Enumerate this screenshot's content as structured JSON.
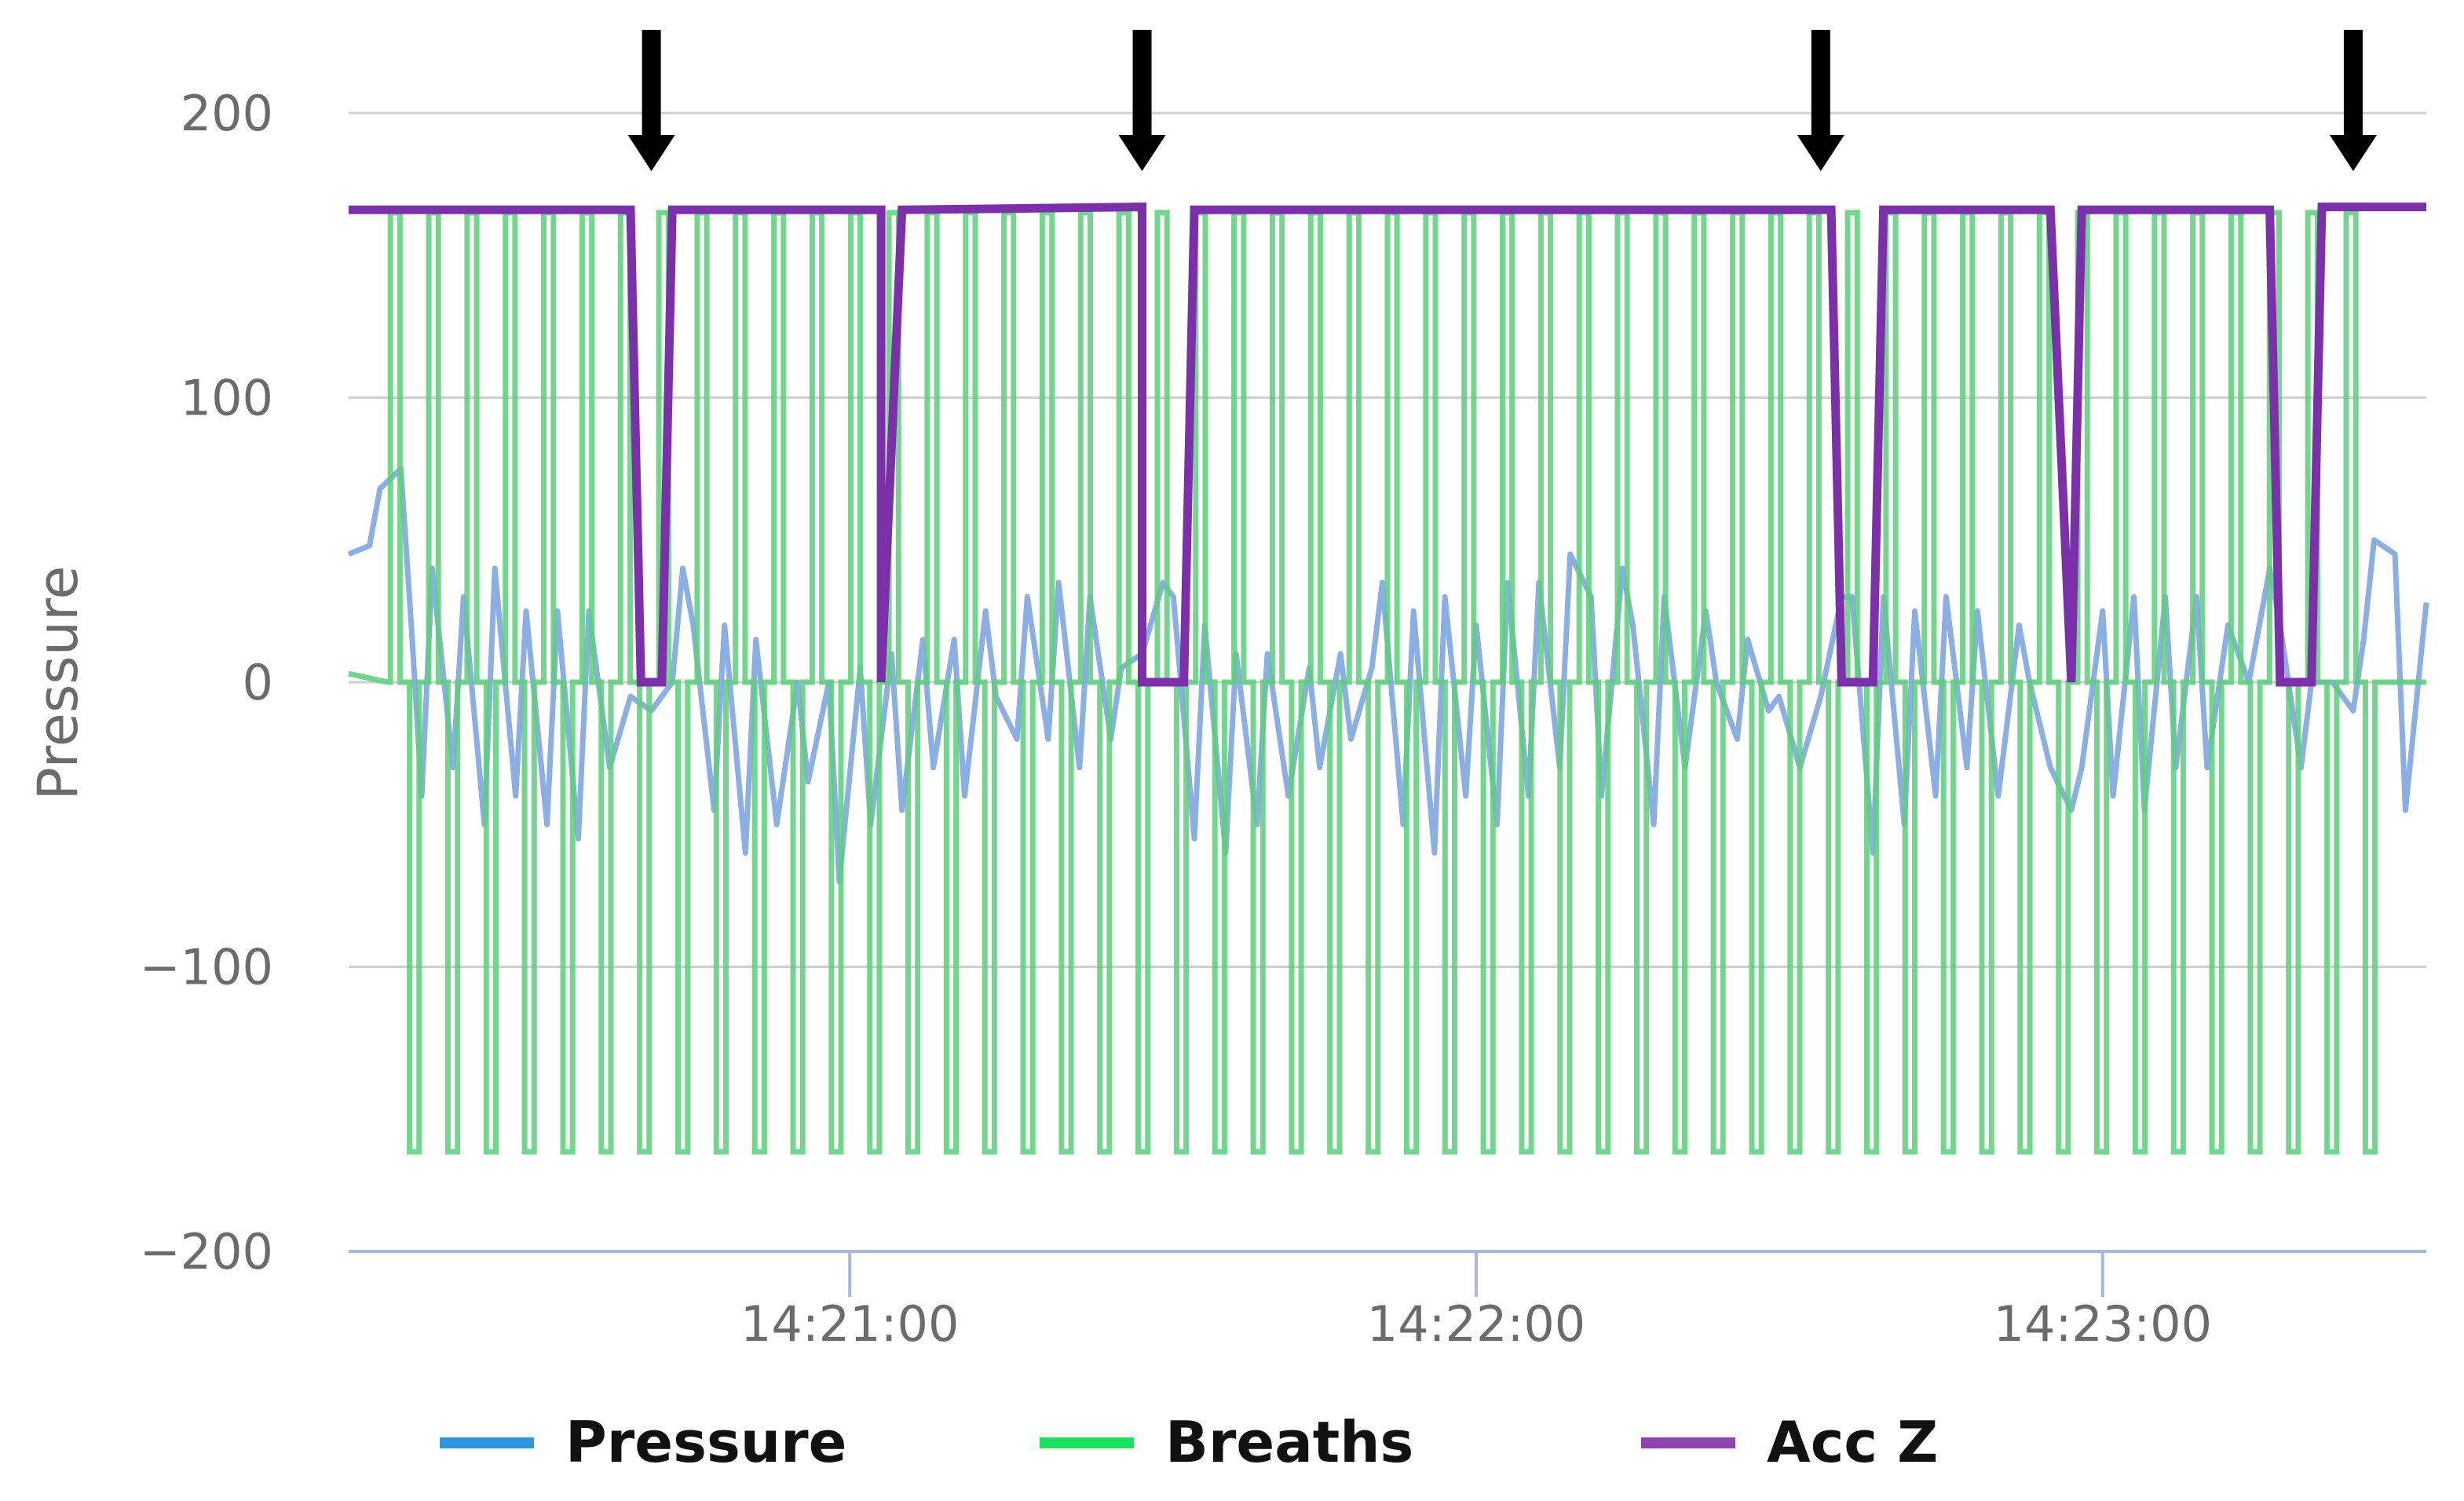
{
  "chart_data": {
    "type": "line",
    "ylabel": "Pressure",
    "ylim": [
      -200,
      200
    ],
    "y_ticks": [
      200,
      100,
      0,
      -100,
      -200
    ],
    "y_tick_labels": [
      "200",
      "100",
      "0",
      "−100",
      "−200"
    ],
    "xlim": [
      "14:20:12",
      "14:23:31"
    ],
    "x_ticks": [
      "14:21:00",
      "14:22:00",
      "14:23:00"
    ],
    "grid": true,
    "legend_position": "bottom",
    "annotations": {
      "type": "down-arrows",
      "count": 4,
      "x": [
        "14:20:41",
        "14:21:28",
        "14:22:33",
        "14:23:24"
      ]
    },
    "series": [
      {
        "name": "Pressure",
        "color": "#7ea6e0",
        "legend_color": "#2e96dc",
        "pattern": "noisy oscillation around 0, roughly -70 to 75, ends near 28",
        "points": [
          [
            "14:20:12",
            45
          ],
          [
            "14:20:14",
            48
          ],
          [
            "14:20:15",
            68
          ],
          [
            "14:20:17",
            75
          ],
          [
            "14:20:18",
            20
          ],
          [
            "14:20:19",
            -40
          ],
          [
            "14:20:20",
            40
          ],
          [
            "14:20:22",
            -30
          ],
          [
            "14:20:23",
            30
          ],
          [
            "14:20:25",
            -50
          ],
          [
            "14:20:26",
            40
          ],
          [
            "14:20:28",
            -40
          ],
          [
            "14:20:29",
            25
          ],
          [
            "14:20:31",
            -50
          ],
          [
            "14:20:32",
            25
          ],
          [
            "14:20:34",
            -55
          ],
          [
            "14:20:35",
            25
          ],
          [
            "14:20:37",
            -30
          ],
          [
            "14:20:39",
            -5
          ],
          [
            "14:20:41",
            -10
          ],
          [
            "14:20:43",
            0
          ],
          [
            "14:20:44",
            40
          ],
          [
            "14:20:45",
            20
          ],
          [
            "14:20:47",
            -45
          ],
          [
            "14:20:48",
            20
          ],
          [
            "14:20:50",
            -60
          ],
          [
            "14:20:51",
            15
          ],
          [
            "14:20:53",
            -50
          ],
          [
            "14:20:55",
            0
          ],
          [
            "14:20:56",
            -35
          ],
          [
            "14:20:58",
            0
          ],
          [
            "14:20:59",
            -70
          ],
          [
            "14:21:01",
            5
          ],
          [
            "14:21:02",
            -50
          ],
          [
            "14:21:04",
            10
          ],
          [
            "14:21:05",
            -45
          ],
          [
            "14:21:07",
            15
          ],
          [
            "14:21:08",
            -30
          ],
          [
            "14:21:10",
            15
          ],
          [
            "14:21:11",
            -40
          ],
          [
            "14:21:13",
            25
          ],
          [
            "14:21:14",
            -5
          ],
          [
            "14:21:16",
            -20
          ],
          [
            "14:21:17",
            30
          ],
          [
            "14:21:19",
            -20
          ],
          [
            "14:21:20",
            35
          ],
          [
            "14:21:22",
            -30
          ],
          [
            "14:21:23",
            30
          ],
          [
            "14:21:25",
            -20
          ],
          [
            "14:21:26",
            5
          ],
          [
            "14:21:28",
            10
          ],
          [
            "14:21:30",
            35
          ],
          [
            "14:21:31",
            30
          ],
          [
            "14:21:33",
            -55
          ],
          [
            "14:21:34",
            20
          ],
          [
            "14:21:36",
            -60
          ],
          [
            "14:21:37",
            10
          ],
          [
            "14:21:39",
            -50
          ],
          [
            "14:21:40",
            10
          ],
          [
            "14:21:42",
            -40
          ],
          [
            "14:21:44",
            5
          ],
          [
            "14:21:45",
            -30
          ],
          [
            "14:21:47",
            10
          ],
          [
            "14:21:48",
            -20
          ],
          [
            "14:21:50",
            5
          ],
          [
            "14:21:51",
            35
          ],
          [
            "14:21:53",
            -50
          ],
          [
            "14:21:54",
            25
          ],
          [
            "14:21:56",
            -60
          ],
          [
            "14:21:57",
            30
          ],
          [
            "14:21:59",
            -40
          ],
          [
            "14:22:00",
            20
          ],
          [
            "14:22:02",
            -50
          ],
          [
            "14:22:03",
            35
          ],
          [
            "14:22:05",
            -40
          ],
          [
            "14:22:06",
            35
          ],
          [
            "14:22:08",
            -30
          ],
          [
            "14:22:09",
            45
          ],
          [
            "14:22:11",
            30
          ],
          [
            "14:22:12",
            -40
          ],
          [
            "14:22:14",
            40
          ],
          [
            "14:22:15",
            20
          ],
          [
            "14:22:17",
            -50
          ],
          [
            "14:22:18",
            30
          ],
          [
            "14:22:20",
            -30
          ],
          [
            "14:22:22",
            25
          ],
          [
            "14:22:23",
            0
          ],
          [
            "14:22:25",
            -20
          ],
          [
            "14:22:26",
            15
          ],
          [
            "14:22:28",
            -10
          ],
          [
            "14:22:29",
            -5
          ],
          [
            "14:22:31",
            -30
          ],
          [
            "14:22:33",
            -5
          ],
          [
            "14:22:35",
            30
          ],
          [
            "14:22:36",
            30
          ],
          [
            "14:22:38",
            -60
          ],
          [
            "14:22:39",
            30
          ],
          [
            "14:22:41",
            -50
          ],
          [
            "14:22:42",
            25
          ],
          [
            "14:22:44",
            -40
          ],
          [
            "14:22:45",
            30
          ],
          [
            "14:22:47",
            -30
          ],
          [
            "14:22:48",
            25
          ],
          [
            "14:22:50",
            -40
          ],
          [
            "14:22:52",
            20
          ],
          [
            "14:22:53",
            0
          ],
          [
            "14:22:55",
            -30
          ],
          [
            "14:22:57",
            -45
          ],
          [
            "14:22:58",
            -30
          ],
          [
            "14:23:00",
            25
          ],
          [
            "14:23:01",
            -40
          ],
          [
            "14:23:03",
            30
          ],
          [
            "14:23:04",
            -45
          ],
          [
            "14:23:06",
            30
          ],
          [
            "14:23:07",
            -30
          ],
          [
            "14:23:09",
            30
          ],
          [
            "14:23:10",
            -30
          ],
          [
            "14:23:12",
            20
          ],
          [
            "14:23:14",
            0
          ],
          [
            "14:23:16",
            40
          ],
          [
            "14:23:17",
            20
          ],
          [
            "14:23:19",
            -30
          ],
          [
            "14:23:20",
            0
          ],
          [
            "14:23:22",
            0
          ],
          [
            "14:23:24",
            -10
          ],
          [
            "14:23:25",
            15
          ],
          [
            "14:23:26",
            50
          ],
          [
            "14:23:28",
            45
          ],
          [
            "14:23:29",
            -45
          ],
          [
            "14:23:31",
            28
          ],
          [
            "14:23:31",
            28
          ]
        ]
      },
      {
        "name": "Breaths",
        "color": "#5ccf7a",
        "legend_color": "#1ee060",
        "pattern": "square pulses between 165 and -165, baseline 0",
        "levels": {
          "high": 165,
          "low": -165,
          "baseline": 0
        },
        "start": [
          "14:20:12",
          3
        ]
      },
      {
        "name": "Acc Z",
        "color": "#7b2fa8",
        "legend_color": "#8e44ad",
        "pattern": "constant ~166 with five dips to 0",
        "points": [
          [
            "14:20:12",
            166
          ],
          [
            "14:20:39",
            166
          ],
          [
            "14:20:40",
            0
          ],
          [
            "14:20:42",
            0
          ],
          [
            "14:20:43",
            166
          ],
          [
            "14:21:03",
            166
          ],
          [
            "14:21:03",
            0
          ],
          [
            "14:21:05",
            166
          ],
          [
            "14:21:28",
            167
          ],
          [
            "14:21:28",
            0
          ],
          [
            "14:21:32",
            0
          ],
          [
            "14:21:33",
            166
          ],
          [
            "14:22:34",
            166
          ],
          [
            "14:22:35",
            0
          ],
          [
            "14:22:38",
            0
          ],
          [
            "14:22:39",
            166
          ],
          [
            "14:22:55",
            166
          ],
          [
            "14:22:57",
            0
          ],
          [
            "14:22:58",
            166
          ],
          [
            "14:23:16",
            166
          ],
          [
            "14:23:17",
            0
          ],
          [
            "14:23:20",
            0
          ],
          [
            "14:23:21",
            167
          ],
          [
            "14:23:31",
            167
          ]
        ]
      }
    ]
  }
}
